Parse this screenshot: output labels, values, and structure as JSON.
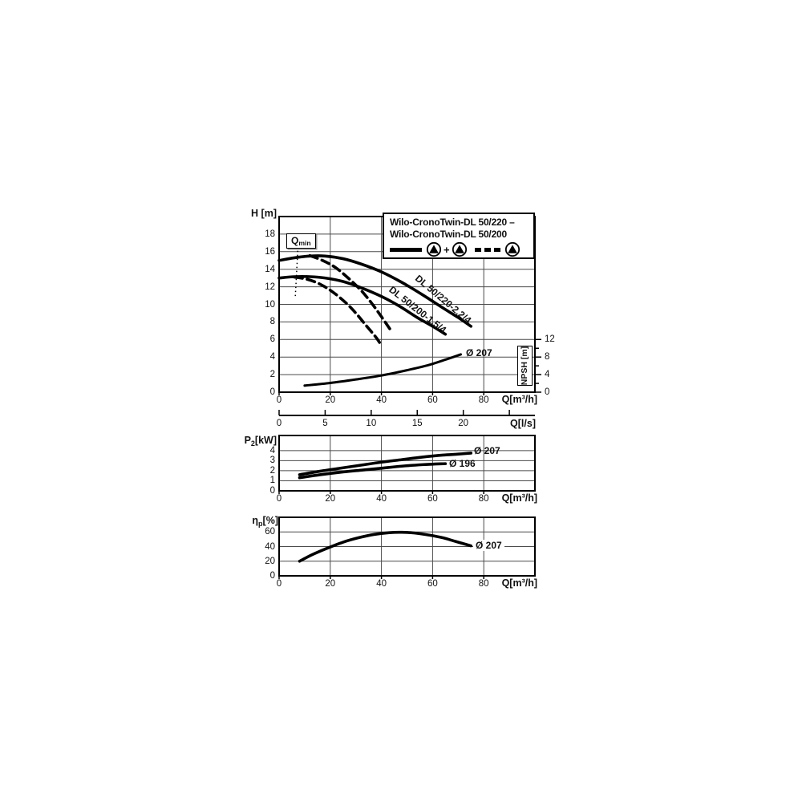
{
  "colors": {
    "curve": "#000000",
    "grid": "#4a4a4a",
    "frame": "#000000",
    "background": "#ffffff",
    "text": "#111111"
  },
  "legend": {
    "title_line1": "Wilo-CronoTwin-DL 50/220 –",
    "title_line2": "Wilo-CronoTwin-DL 50/200",
    "plus": "+",
    "solid_meaning": "two pumps",
    "dashed_meaning": "single pump",
    "pump_icon": "circle-with-filled-triangle"
  },
  "chart_data": [
    {
      "id": "head_flow",
      "type": "line",
      "xlabel": "Q[m³/h]",
      "ylabel": "H [m]",
      "xlim": [
        0,
        100
      ],
      "ylim": [
        0,
        20
      ],
      "xticks": [
        0,
        20,
        40,
        60,
        80
      ],
      "yticks": [
        0,
        2,
        4,
        6,
        8,
        10,
        12,
        14,
        16,
        18
      ],
      "x_gridlines": [
        20,
        40,
        60,
        80
      ],
      "y_gridlines": [
        2,
        4,
        6,
        8,
        10,
        12,
        14,
        16,
        18
      ],
      "grid": true,
      "series": [
        {
          "name": "DL 50/220-2.2/4 two pumps",
          "label": "DL 50/220-2.2/4",
          "style": "solid",
          "points": [
            [
              0,
              15.0
            ],
            [
              6,
              15.3
            ],
            [
              12,
              15.5
            ],
            [
              18,
              15.5
            ],
            [
              25,
              15.2
            ],
            [
              32,
              14.6
            ],
            [
              40,
              13.7
            ],
            [
              48,
              12.5
            ],
            [
              56,
              11.1
            ],
            [
              64,
              9.6
            ],
            [
              70,
              8.5
            ],
            [
              75,
              7.5
            ]
          ]
        },
        {
          "name": "DL 50/200-1.5/4 two pumps",
          "label": "DL 50/200-1.5/4",
          "style": "solid",
          "points": [
            [
              0,
              13.0
            ],
            [
              6,
              13.15
            ],
            [
              12,
              13.15
            ],
            [
              18,
              13.0
            ],
            [
              25,
              12.6
            ],
            [
              32,
              11.9
            ],
            [
              40,
              10.9
            ],
            [
              47,
              9.8
            ],
            [
              54,
              8.5
            ],
            [
              60,
              7.5
            ],
            [
              65,
              6.6
            ]
          ]
        },
        {
          "name": "DL 50/220 single pump",
          "label": "",
          "style": "dashed",
          "points": [
            [
              12,
              15.55
            ],
            [
              17,
              15.0
            ],
            [
              22,
              14.2
            ],
            [
              27,
              13.0
            ],
            [
              32,
              11.6
            ],
            [
              36,
              10.2
            ],
            [
              40,
              8.6
            ],
            [
              44,
              6.9
            ]
          ]
        },
        {
          "name": "DL 50/200 single pump",
          "label": "",
          "style": "dashed",
          "points": [
            [
              6,
              13.1
            ],
            [
              11,
              12.85
            ],
            [
              16,
              12.3
            ],
            [
              21,
              11.4
            ],
            [
              26,
              10.2
            ],
            [
              30,
              9.0
            ],
            [
              34,
              7.6
            ],
            [
              38,
              6.2
            ],
            [
              40,
              5.3
            ]
          ]
        },
        {
          "name": "NPSH Ø 207",
          "label": "Ø 207",
          "style": "solid",
          "width": 3,
          "axis": "npsh",
          "points": [
            [
              10,
              1.5
            ],
            [
              20,
              2.1
            ],
            [
              30,
              2.9
            ],
            [
              40,
              3.8
            ],
            [
              50,
              5.0
            ],
            [
              58,
              6.1
            ],
            [
              65,
              7.4
            ],
            [
              71,
              8.6
            ]
          ]
        }
      ],
      "npsh_axis": {
        "label": "NPSH [m]",
        "ticks": [
          0,
          2,
          4,
          6,
          8,
          10,
          12
        ],
        "labeled": [
          0,
          4,
          8,
          12
        ],
        "scale_to_H": 0.5
      },
      "qmin": {
        "label": "Q",
        "sub": "min",
        "line": [
          [
            7.3,
            16.1
          ],
          [
            6.3,
            10.7
          ]
        ]
      }
    },
    {
      "id": "flow_lps",
      "type": "axis",
      "label": "Q[l/s]",
      "ticks": [
        0,
        5,
        10,
        15,
        20,
        25
      ],
      "tick_labels": [
        0,
        5,
        10,
        15,
        20
      ],
      "factor_to_m3h": 3.6
    },
    {
      "id": "power",
      "type": "line",
      "xlabel": "Q[m³/h]",
      "ylabel_prefix": "P",
      "ylabel_sub": "2",
      "ylabel_suffix": "[kW]",
      "xlim": [
        0,
        100
      ],
      "ylim": [
        0,
        5.5
      ],
      "xticks": [
        0,
        20,
        40,
        60,
        80
      ],
      "yticks": [
        0,
        1,
        2,
        3,
        4
      ],
      "x_gridlines": [
        20,
        40,
        60,
        80
      ],
      "y_gridlines": [
        1,
        2,
        3,
        4
      ],
      "grid": true,
      "series": [
        {
          "name": "P2 Ø 207",
          "label": "Ø 207",
          "style": "solid",
          "points": [
            [
              8,
              1.6
            ],
            [
              16,
              1.95
            ],
            [
              24,
              2.25
            ],
            [
              32,
              2.55
            ],
            [
              40,
              2.85
            ],
            [
              48,
              3.1
            ],
            [
              56,
              3.35
            ],
            [
              64,
              3.55
            ],
            [
              70,
              3.65
            ],
            [
              75,
              3.75
            ]
          ]
        },
        {
          "name": "P2 Ø 196",
          "label": "Ø 196",
          "style": "solid",
          "points": [
            [
              8,
              1.3
            ],
            [
              16,
              1.6
            ],
            [
              24,
              1.85
            ],
            [
              32,
              2.05
            ],
            [
              40,
              2.25
            ],
            [
              48,
              2.45
            ],
            [
              56,
              2.6
            ],
            [
              65,
              2.7
            ]
          ]
        }
      ]
    },
    {
      "id": "efficiency",
      "type": "line",
      "xlabel": "Q[m³/h]",
      "ylabel_prefix": "η",
      "ylabel_sub": "p",
      "ylabel_suffix": "[%]",
      "xlim": [
        0,
        100
      ],
      "ylim": [
        0,
        80
      ],
      "xticks": [
        0,
        20,
        40,
        60,
        80
      ],
      "yticks": [
        0,
        20,
        40,
        60
      ],
      "x_gridlines": [
        20,
        40,
        60,
        80
      ],
      "y_gridlines": [
        20,
        40,
        60
      ],
      "grid": true,
      "series": [
        {
          "name": "Efficiency Ø 207",
          "label": "Ø 207",
          "style": "solid",
          "points": [
            [
              8,
              20
            ],
            [
              13,
              29
            ],
            [
              19,
              38
            ],
            [
              25,
              46
            ],
            [
              31,
              52
            ],
            [
              37,
              56.5
            ],
            [
              43,
              59
            ],
            [
              48,
              59.5
            ],
            [
              53,
              58.5
            ],
            [
              59,
              55.5
            ],
            [
              64,
              52
            ],
            [
              69,
              47
            ],
            [
              75,
              41
            ]
          ]
        }
      ]
    }
  ]
}
